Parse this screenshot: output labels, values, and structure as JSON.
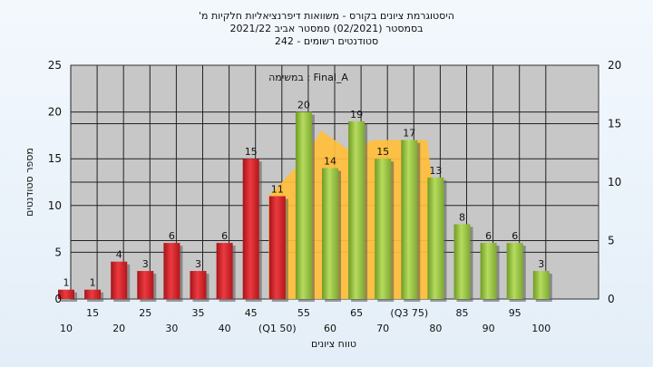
{
  "chart_data": {
    "type": "bar",
    "title_lines": [
      "היסטוגרמת ציונים בקורס - משוואות דיפרנציאליות חלקיות מ'",
      "בסמסטר  (02/2021)  סמסטר אביב 2021/22",
      "סטודנטים רשומים - 242"
    ],
    "annotation": "במשימה : Final_A",
    "xlabel": "טווח ציונים",
    "ylabel": "מספר סטודנטים",
    "ylim": [
      0,
      25
    ],
    "y_ticks": [
      0,
      5,
      10,
      15,
      20,
      25
    ],
    "y2lim": [
      0,
      20
    ],
    "y2_ticks": [
      0,
      5,
      10,
      15,
      20
    ],
    "x_tick_labels": [
      {
        "label": "10",
        "row": 2
      },
      {
        "label": "15",
        "row": 1
      },
      {
        "label": "20",
        "row": 2
      },
      {
        "label": "25",
        "row": 1
      },
      {
        "label": "30",
        "row": 2
      },
      {
        "label": "35",
        "row": 1
      },
      {
        "label": "40",
        "row": 2
      },
      {
        "label": "45",
        "row": 1
      },
      {
        "label": "(Q1 50)",
        "row": 2
      },
      {
        "label": "55",
        "row": 1
      },
      {
        "label": "60",
        "row": 2
      },
      {
        "label": "65",
        "row": 1
      },
      {
        "label": "70",
        "row": 2
      },
      {
        "label": "(Q3 75)",
        "row": 1
      },
      {
        "label": "80",
        "row": 2
      },
      {
        "label": "85",
        "row": 1
      },
      {
        "label": "90",
        "row": 2
      },
      {
        "label": "95",
        "row": 1
      },
      {
        "label": "100",
        "row": 2
      }
    ],
    "bars": [
      {
        "x": 15,
        "value": 1,
        "color": "red"
      },
      {
        "x": 20,
        "value": 1,
        "color": "red"
      },
      {
        "x": 25,
        "value": 4,
        "color": "red"
      },
      {
        "x": 30,
        "value": 3,
        "color": "red"
      },
      {
        "x": 35,
        "value": 6,
        "color": "red"
      },
      {
        "x": 40,
        "value": 3,
        "color": "red"
      },
      {
        "x": 45,
        "value": 6,
        "color": "red"
      },
      {
        "x": 50,
        "value": 15,
        "color": "red"
      },
      {
        "x": 55,
        "value": 11,
        "color": "red"
      },
      {
        "x": 60,
        "value": 20,
        "color": "green"
      },
      {
        "x": 65,
        "value": 14,
        "color": "green"
      },
      {
        "x": 70,
        "value": 19,
        "color": "green"
      },
      {
        "x": 75,
        "value": 15,
        "color": "green"
      },
      {
        "x": 80,
        "value": 17,
        "color": "green"
      },
      {
        "x": 85,
        "value": 13,
        "color": "green"
      },
      {
        "x": 90,
        "value": 8,
        "color": "green"
      },
      {
        "x": 95,
        "value": 6,
        "color": "green"
      },
      {
        "x": 100,
        "value": 6,
        "color": "green"
      },
      {
        "x": 105,
        "value": 3,
        "color": "green"
      }
    ],
    "area_series": {
      "name": "",
      "x": [
        50,
        55,
        60,
        65,
        70,
        75,
        80,
        82.5
      ],
      "y": [
        11,
        14,
        18,
        16,
        17,
        17,
        17,
        6
      ]
    },
    "colors": {
      "red_bar": "#d9252b",
      "green_bar": "#9cc544",
      "area": "#ffbf3a",
      "plot_bg": "#c7c7c7",
      "grid": "#222222"
    },
    "grid": true
  }
}
